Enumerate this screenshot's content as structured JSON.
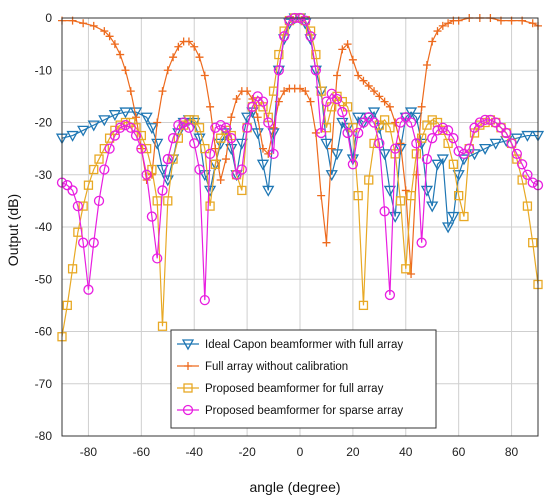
{
  "chart_data": {
    "type": "line",
    "xlabel": "angle (degree)",
    "ylabel": "Output (dB)",
    "xlim": [
      -90,
      90
    ],
    "ylim": [
      -80,
      0
    ],
    "x_ticks": [
      -80,
      -60,
      -40,
      -20,
      0,
      20,
      40,
      60,
      80
    ],
    "y_ticks": [
      0,
      -10,
      -20,
      -30,
      -40,
      -50,
      -60,
      -70,
      -80
    ],
    "grid": true,
    "legend_position": "bottom-center",
    "series": [
      {
        "name": "Ideal Capon beamformer with full array",
        "color": "#1f77b4",
        "marker": "triangle-down",
        "x": [
          -90,
          -86,
          -82,
          -78,
          -74,
          -70,
          -66,
          -62,
          -58,
          -56,
          -54,
          -52,
          -50,
          -48,
          -46,
          -44,
          -42,
          -40,
          -38,
          -36,
          -34,
          -32,
          -30,
          -28,
          -26,
          -24,
          -22,
          -20,
          -18,
          -16,
          -14,
          -12,
          -10,
          -8,
          -6,
          -4,
          -2,
          0,
          2,
          4,
          6,
          8,
          10,
          12,
          14,
          16,
          18,
          20,
          22,
          24,
          26,
          28,
          30,
          32,
          34,
          36,
          38,
          40,
          42,
          44,
          46,
          48,
          50,
          52,
          54,
          56,
          58,
          60,
          62,
          66,
          70,
          74,
          78,
          82,
          86,
          90
        ],
        "y": [
          -23,
          -22.5,
          -21.5,
          -20.5,
          -19.5,
          -18.5,
          -18,
          -18,
          -19,
          -21,
          -24,
          -29,
          -31,
          -27,
          -22,
          -20,
          -19.5,
          -20,
          -23,
          -30,
          -33,
          -28,
          -24,
          -22,
          -25,
          -30,
          -24,
          -19,
          -18,
          -22,
          -28,
          -33,
          -22,
          -10,
          -4,
          -1,
          0,
          0,
          -1,
          -4,
          -10,
          -14,
          -24,
          -30,
          -26,
          -20,
          -21,
          -27,
          -19,
          -20,
          -19,
          -18,
          -21,
          -26,
          -33,
          -38,
          -25,
          -19,
          -18,
          -19,
          -24,
          -33,
          -36,
          -28,
          -27,
          -40,
          -38,
          -30,
          -27,
          -26,
          -25,
          -24,
          -23.5,
          -23,
          -22.5,
          -22.5
        ]
      },
      {
        "name": "Full array without calibration",
        "color": "#ed6a1d",
        "marker": "plus",
        "x": [
          -90,
          -86,
          -82,
          -78,
          -74,
          -72,
          -70,
          -68,
          -66,
          -64,
          -62,
          -60,
          -58,
          -56,
          -54,
          -52,
          -50,
          -48,
          -46,
          -44,
          -42,
          -40,
          -38,
          -36,
          -34,
          -32,
          -30,
          -28,
          -26,
          -24,
          -22,
          -20,
          -18,
          -16,
          -14,
          -12,
          -10,
          -8,
          -6,
          -4,
          -2,
          0,
          2,
          4,
          6,
          8,
          10,
          12,
          14,
          16,
          18,
          20,
          22,
          24,
          26,
          28,
          30,
          32,
          34,
          36,
          38,
          40,
          42,
          44,
          46,
          48,
          50,
          52,
          54,
          56,
          58,
          60,
          64,
          68,
          72,
          76,
          80,
          84,
          88,
          90
        ],
        "y": [
          -0.5,
          -0.5,
          -1,
          -1.5,
          -2.5,
          -3.5,
          -5,
          -7,
          -10,
          -14,
          -19,
          -25,
          -31,
          -30,
          -20,
          -14,
          -10,
          -7.5,
          -5.5,
          -4.5,
          -4.5,
          -5.5,
          -7.5,
          -11,
          -17,
          -25,
          -31,
          -27,
          -19,
          -15.5,
          -14,
          -14,
          -15.5,
          -19,
          -25,
          -26,
          -21,
          -16,
          -14,
          -13.5,
          -13.5,
          -13.5,
          -14,
          -16,
          -22,
          -34,
          -43,
          -25,
          -11,
          -6,
          -5,
          -8,
          -11,
          -12,
          -13,
          -14,
          -15,
          -16,
          -17,
          -20,
          -24,
          -33,
          -49,
          -30,
          -17,
          -9,
          -4.5,
          -2.5,
          -1.5,
          -1,
          -0.5,
          -0.5,
          0,
          0,
          0,
          -0.5,
          -0.5,
          -0.5,
          -1,
          -1.5
        ]
      },
      {
        "name": "Proposed beamformer for full array",
        "color": "#e8a925",
        "marker": "square",
        "x": [
          -90,
          -88,
          -86,
          -84,
          -82,
          -80,
          -78,
          -76,
          -74,
          -72,
          -70,
          -68,
          -66,
          -64,
          -62,
          -60,
          -58,
          -56,
          -54,
          -52,
          -50,
          -48,
          -46,
          -44,
          -42,
          -40,
          -38,
          -36,
          -34,
          -32,
          -30,
          -28,
          -26,
          -24,
          -22,
          -20,
          -18,
          -16,
          -14,
          -12,
          -10,
          -8,
          -6,
          -4,
          -2,
          0,
          2,
          4,
          6,
          8,
          10,
          12,
          14,
          16,
          18,
          20,
          22,
          24,
          26,
          28,
          30,
          32,
          34,
          36,
          38,
          40,
          42,
          44,
          46,
          48,
          50,
          52,
          54,
          56,
          58,
          60,
          62,
          64,
          66,
          68,
          70,
          72,
          74,
          76,
          78,
          80,
          82,
          84,
          86,
          88,
          90
        ],
        "y": [
          -61,
          -55,
          -48,
          -41,
          -36,
          -32,
          -29,
          -27,
          -25,
          -23,
          -21.5,
          -20.5,
          -20,
          -20,
          -21,
          -22.5,
          -25,
          -29,
          -35,
          -59,
          -35,
          -27,
          -23,
          -20.5,
          -19.5,
          -19.5,
          -21,
          -25,
          -36,
          -28,
          -23,
          -21.5,
          -22.5,
          -30,
          -33,
          -21,
          -17,
          -16,
          -17,
          -19,
          -14,
          -7,
          -2.5,
          -0.5,
          0,
          0,
          -0.5,
          -2.5,
          -7,
          -14,
          -21,
          -17,
          -15,
          -16,
          -17,
          -21,
          -34,
          -55,
          -31,
          -24,
          -20.5,
          -19.5,
          -21,
          -26,
          -35,
          -48,
          -34,
          -26,
          -23,
          -20.5,
          -19.5,
          -20,
          -21.5,
          -24,
          -28,
          -34,
          -38,
          -25,
          -22,
          -20.5,
          -20,
          -19.5,
          -20,
          -21,
          -22,
          -24,
          -27,
          -31,
          -36,
          -43,
          -51
        ]
      },
      {
        "name": "Proposed beamformer for sparse array",
        "color": "#e81ee0",
        "marker": "circle",
        "x": [
          -90,
          -88,
          -86,
          -84,
          -82,
          -80,
          -78,
          -76,
          -74,
          -72,
          -70,
          -68,
          -66,
          -64,
          -62,
          -60,
          -58,
          -56,
          -54,
          -52,
          -50,
          -48,
          -46,
          -44,
          -42,
          -40,
          -38,
          -36,
          -34,
          -32,
          -30,
          -28,
          -26,
          -24,
          -22,
          -20,
          -18,
          -16,
          -14,
          -12,
          -10,
          -8,
          -6,
          -4,
          -2,
          0,
          2,
          4,
          6,
          8,
          10,
          12,
          14,
          16,
          18,
          20,
          22,
          24,
          26,
          28,
          30,
          32,
          34,
          36,
          38,
          40,
          42,
          44,
          46,
          48,
          50,
          52,
          54,
          56,
          58,
          60,
          62,
          64,
          66,
          68,
          70,
          72,
          74,
          76,
          78,
          80,
          82,
          84,
          86,
          88,
          90
        ],
        "y": [
          -31.5,
          -32,
          -33,
          -36,
          -43,
          -52,
          -43,
          -35,
          -29,
          -25,
          -22.5,
          -21,
          -20.5,
          -21,
          -22.5,
          -25,
          -30,
          -38,
          -46,
          -33,
          -27,
          -23,
          -20.5,
          -20,
          -21,
          -24,
          -29,
          -54,
          -26,
          -21,
          -20.5,
          -21,
          -23,
          -30,
          -29,
          -21,
          -17,
          -15,
          -16,
          -20,
          -26,
          -10,
          -3.5,
          -0.5,
          0,
          0,
          -0.5,
          -3.5,
          -10,
          -22,
          -16,
          -14.5,
          -15.5,
          -18,
          -22,
          -28,
          -22,
          -20,
          -19,
          -20,
          -24,
          -37,
          -53,
          -25,
          -20,
          -19,
          -20,
          -24,
          -43,
          -27,
          -23,
          -21.5,
          -21,
          -21.5,
          -23,
          -25.5,
          -26,
          -25,
          -21,
          -20,
          -19.5,
          -19.5,
          -20,
          -21,
          -22,
          -24,
          -26,
          -28,
          -30,
          -31.5,
          -32
        ]
      }
    ]
  }
}
